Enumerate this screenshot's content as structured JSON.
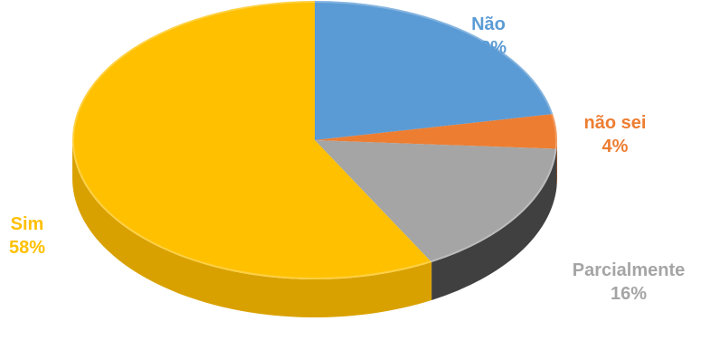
{
  "chart_data": {
    "type": "pie",
    "style": "3d",
    "slices": [
      {
        "label": "Não",
        "value": 22,
        "display": "22%",
        "color": "#5b9bd5",
        "side": "#3f78ac",
        "labelColor": "#5b9bd5"
      },
      {
        "label": "não sei",
        "value": 4,
        "display": "4%",
        "color": "#ed7d31",
        "side": "#b55a1b",
        "labelColor": "#ed7d31"
      },
      {
        "label": "Parcialmente",
        "value": 16,
        "display": "16%",
        "color": "#a5a5a5",
        "side": "#404040",
        "labelColor": "#a5a5a5"
      },
      {
        "label": "Sim",
        "value": 58,
        "display": "58%",
        "color": "#ffc000",
        "side": "#d9a100",
        "labelColor": "#ffc000"
      }
    ]
  }
}
